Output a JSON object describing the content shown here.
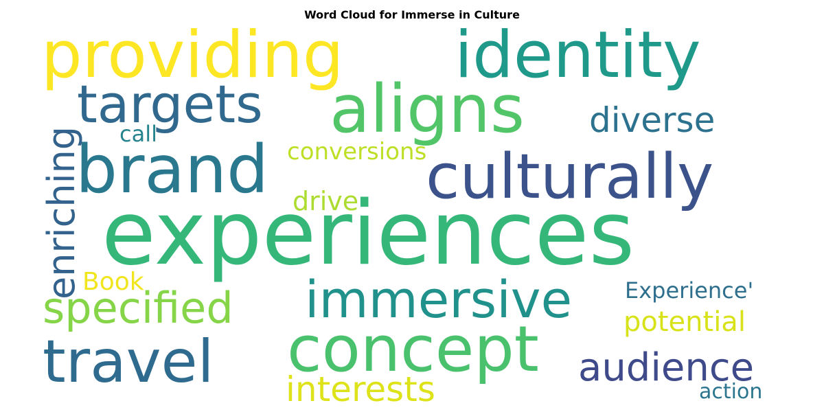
{
  "chart_data": {
    "type": "wordcloud",
    "title": "Word Cloud for Immerse in Culture",
    "colormap": "viridis",
    "background": "#ffffff",
    "words": [
      {
        "text": "experiences",
        "color": "#35b779"
      },
      {
        "text": "concept",
        "color": "#4ac16d"
      },
      {
        "text": "aligns",
        "color": "#52c569"
      },
      {
        "text": "providing",
        "color": "#fde725"
      },
      {
        "text": "identity",
        "color": "#1f9a8a"
      },
      {
        "text": "culturally",
        "color": "#3b528b"
      },
      {
        "text": "brand",
        "color": "#2a788e"
      },
      {
        "text": "targets",
        "color": "#31688e"
      },
      {
        "text": "immersive",
        "color": "#21918c"
      },
      {
        "text": "travel",
        "color": "#2f6b8e"
      },
      {
        "text": "specified",
        "color": "#86d549"
      },
      {
        "text": "enriching",
        "color": "#33638d"
      },
      {
        "text": "audience",
        "color": "#3e4a89"
      },
      {
        "text": "interests",
        "color": "#dde318"
      },
      {
        "text": "diverse",
        "color": "#2c728e"
      },
      {
        "text": "conversions",
        "color": "#bddf26"
      },
      {
        "text": "potential",
        "color": "#d8e219"
      },
      {
        "text": "Experience'",
        "color": "#2e6f8e"
      },
      {
        "text": "drive",
        "color": "#addc30"
      },
      {
        "text": "action",
        "color": "#2b758e"
      },
      {
        "text": "Book",
        "color": "#f1e51d"
      },
      {
        "text": "call",
        "color": "#25848e"
      }
    ]
  }
}
